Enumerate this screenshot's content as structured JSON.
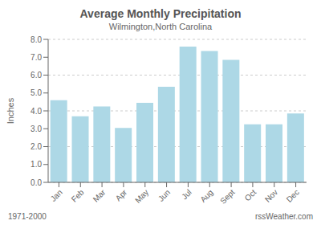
{
  "chart_data": {
    "type": "bar",
    "title": "Average Monthly Precipitation",
    "subtitle": "Wilmington,North Carolina",
    "ylabel": "Inches",
    "annotations": [
      "1971-2000",
      "rssWeather.com"
    ],
    "categories": [
      "Jan",
      "Feb",
      "Mar",
      "Apr",
      "May",
      "Jun",
      "Jul",
      "Aug",
      "Sept",
      "Oct",
      "Nov",
      "Dec"
    ],
    "values": [
      4.6,
      3.7,
      4.25,
      3.05,
      4.45,
      5.35,
      7.6,
      7.35,
      6.85,
      3.25,
      3.25,
      3.85
    ],
    "color": "#add8e6",
    "ylim": [
      0,
      8.0
    ],
    "yticks": [
      {
        "value": 0.0,
        "label": "0.0"
      },
      {
        "value": 1.0,
        "label": "1.0"
      },
      {
        "value": 2.0,
        "label": "2.0"
      },
      {
        "value": 3.0,
        "label": "3.0"
      },
      {
        "value": 4.0,
        "label": "4.0"
      },
      {
        "value": 5.0,
        "label": "5.0"
      },
      {
        "value": 6.0,
        "label": "6.0"
      },
      {
        "value": 7.0,
        "label": "7.0"
      },
      {
        "value": 8.0,
        "label": "8.0"
      }
    ],
    "grid": true
  }
}
